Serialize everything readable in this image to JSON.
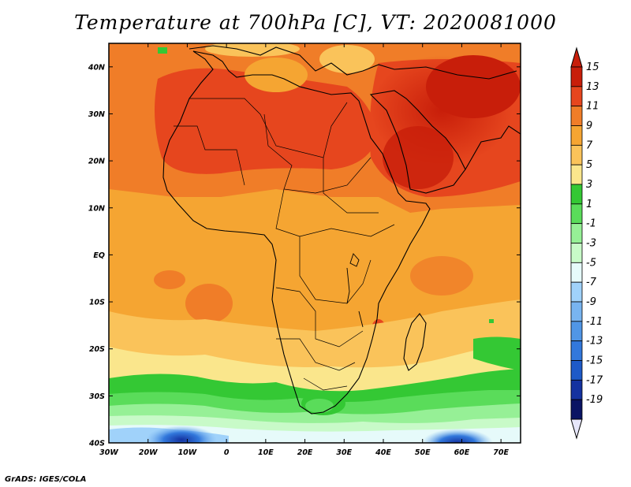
{
  "title": "Temperature at 700hPa [C], VT: 2020081000",
  "credit": "GrADS: IGES/COLA",
  "map": {
    "lon_range": [
      -30,
      75
    ],
    "lat_range": [
      -40,
      45
    ],
    "lon_ticks": [
      "30W",
      "20W",
      "10W",
      "0",
      "10E",
      "20E",
      "30E",
      "40E",
      "50E",
      "60E",
      "70E"
    ],
    "lat_ticks": [
      "40N",
      "30N",
      "20N",
      "10N",
      "EQ",
      "10S",
      "20S",
      "30S",
      "40S"
    ],
    "region": "Africa and Middle East"
  },
  "colorbar": {
    "levels": [
      "15",
      "13",
      "11",
      "9",
      "7",
      "5",
      "3",
      "1",
      "-1",
      "-3",
      "-5",
      "-7",
      "-9",
      "-11",
      "-13",
      "-15",
      "-17",
      "-19"
    ],
    "colors": [
      "#c81e0a",
      "#e6461e",
      "#f07d28",
      "#f5a532",
      "#fac35a",
      "#fae68c",
      "#34c834",
      "#5adc5a",
      "#96f096",
      "#c8fac8",
      "#e6fafa",
      "#a0d2fa",
      "#78b4f0",
      "#5096e6",
      "#3278dc",
      "#1e5ac8",
      "#1432a0",
      "#0a1464"
    ],
    "top_arrow_color": "#c81e0a",
    "bottom_arrow_color": "#e6e6fa"
  }
}
